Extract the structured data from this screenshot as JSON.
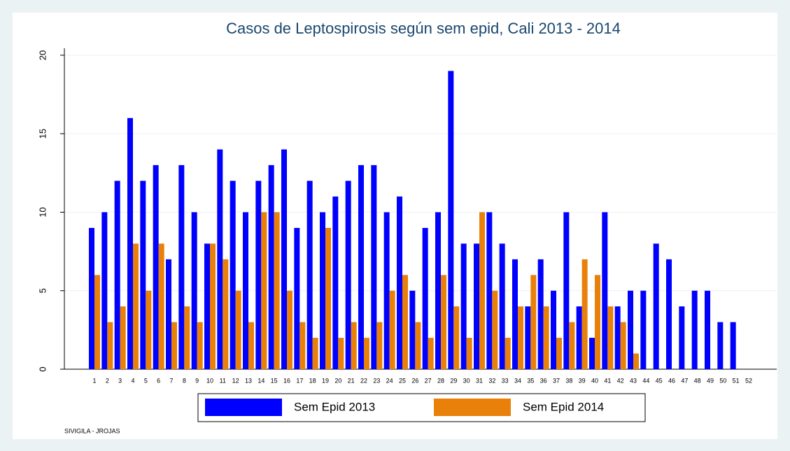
{
  "chart_data": {
    "type": "bar",
    "title": "Casos de Leptospirosis según sem epid, Cali 2013 - 2014",
    "categories": [
      "1",
      "2",
      "3",
      "4",
      "5",
      "6",
      "7",
      "8",
      "9",
      "10",
      "11",
      "12",
      "13",
      "14",
      "15",
      "16",
      "17",
      "18",
      "19",
      "20",
      "21",
      "22",
      "23",
      "24",
      "25",
      "26",
      "27",
      "28",
      "29",
      "30",
      "31",
      "32",
      "33",
      "34",
      "35",
      "36",
      "37",
      "38",
      "39",
      "40",
      "41",
      "42",
      "43",
      "44",
      "45",
      "46",
      "47",
      "48",
      "49",
      "50",
      "51",
      "52"
    ],
    "series": [
      {
        "name": "Sem Epid 2013",
        "color": "#0000ff",
        "values": [
          9,
          10,
          12,
          16,
          12,
          13,
          7,
          13,
          10,
          8,
          14,
          12,
          10,
          12,
          13,
          14,
          9,
          12,
          10,
          11,
          12,
          13,
          13,
          10,
          11,
          5,
          9,
          10,
          19,
          8,
          8,
          10,
          8,
          7,
          4,
          7,
          5,
          10,
          4,
          2,
          10,
          4,
          5,
          5,
          8,
          7,
          4,
          5,
          5,
          3,
          3,
          null
        ]
      },
      {
        "name": "Sem Epid 2014",
        "color": "#e8800a",
        "values": [
          6,
          3,
          4,
          8,
          5,
          8,
          3,
          4,
          3,
          8,
          7,
          5,
          3,
          10,
          10,
          5,
          3,
          2,
          9,
          2,
          3,
          2,
          3,
          5,
          6,
          3,
          2,
          6,
          4,
          2,
          10,
          5,
          2,
          4,
          6,
          4,
          2,
          3,
          7,
          6,
          4,
          3,
          1,
          null,
          null,
          null,
          null,
          null,
          null,
          null,
          null,
          null
        ]
      }
    ],
    "ylim": [
      0,
      20
    ],
    "yticks": [
      0,
      5,
      10,
      15,
      20
    ],
    "grid": true,
    "note": "SIVIGILA - JROJAS"
  }
}
